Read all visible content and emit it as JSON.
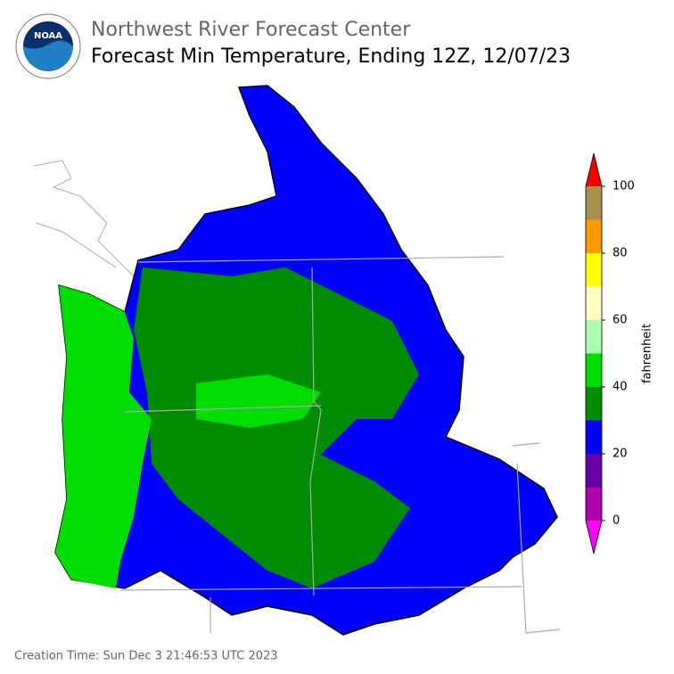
{
  "header": {
    "org": "Northwest River Forecast Center",
    "title": "Forecast Min Temperature, Ending 12Z, 12/07/23"
  },
  "colorbar": {
    "label": "fahrenheit",
    "edges": [
      0,
      10,
      20,
      30,
      40,
      50,
      60,
      70,
      80,
      90,
      100
    ],
    "colors": [
      "#b000b0",
      "#6600aa",
      "#0000ff",
      "#008c00",
      "#00dd00",
      "#aaffaa",
      "#ffffc0",
      "#ffff00",
      "#ff9900",
      "#a89050"
    ],
    "under_color": "#ff00ff",
    "over_color": "#ff0000",
    "ticks": [
      0,
      20,
      40,
      60,
      80,
      100
    ]
  },
  "footer": {
    "creation_time": "Creation Time: Sun Dec 3 21:46:53 UTC 2023"
  }
}
